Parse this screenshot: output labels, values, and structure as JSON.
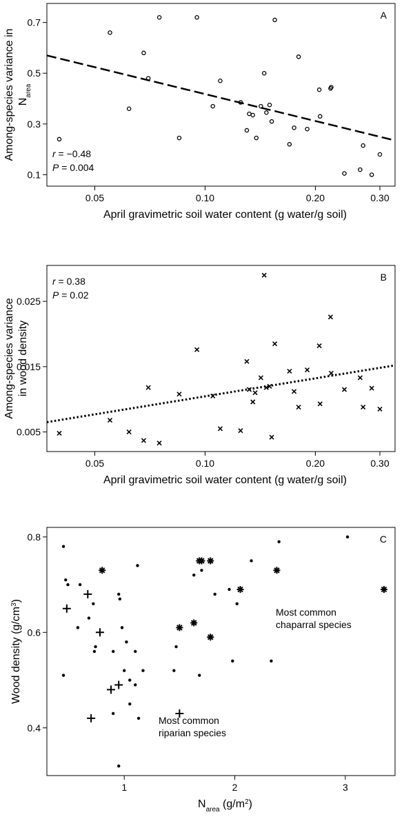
{
  "chart_data": [
    {
      "type": "scatter",
      "panel_label": "A",
      "xscale": "log",
      "xlim": [
        0.037,
        0.33
      ],
      "ylim": [
        0.055,
        0.775
      ],
      "xticks": [
        0.05,
        {
          "value": 0.1,
          "label": "0.10"
        },
        {
          "value": 0.2,
          "label": "0.20"
        },
        {
          "value": 0.3,
          "label": "0.30"
        }
      ],
      "yticks": [
        0.1,
        0.3,
        0.5,
        0.7
      ],
      "xlabel": [
        [
          {
            "text": "April gravimetric soil water content (g water/g soil)"
          }
        ]
      ],
      "ylabel": [
        [
          {
            "text": "Among-species variance in"
          }
        ],
        [
          {
            "text": "N"
          },
          {
            "sub": "area"
          }
        ]
      ],
      "stats": [
        {
          "symbol": "r",
          "text": " = −0.48"
        },
        {
          "symbol": "P",
          "text": " = 0.004"
        }
      ],
      "stats_corner": "lower left",
      "trend": {
        "x": [
          0.037,
          0.33
        ],
        "y": [
          0.57,
          0.235
        ],
        "style": "dashed"
      },
      "series": [
        {
          "marker": "circle",
          "color": "#000000",
          "x": [
            0.04,
            0.055,
            0.062,
            0.068,
            0.07,
            0.075,
            0.085,
            0.095,
            0.105,
            0.11,
            0.125,
            0.13,
            0.132,
            0.135,
            0.138,
            0.142,
            0.145,
            0.147,
            0.15,
            0.152,
            0.155,
            0.17,
            0.175,
            0.18,
            0.19,
            0.205,
            0.206,
            0.22,
            0.221,
            0.24,
            0.265,
            0.27,
            0.285,
            0.3
          ],
          "values": [
            0.24,
            0.66,
            0.36,
            0.58,
            0.48,
            0.72,
            0.245,
            0.72,
            0.37,
            0.47,
            0.385,
            0.275,
            0.34,
            0.335,
            0.245,
            0.37,
            0.5,
            0.345,
            0.375,
            0.31,
            0.71,
            0.22,
            0.285,
            0.565,
            0.28,
            0.435,
            0.33,
            0.44,
            0.445,
            0.105,
            0.12,
            0.215,
            0.1,
            0.18
          ]
        }
      ]
    },
    {
      "type": "scatter",
      "panel_label": "B",
      "xscale": "log",
      "xlim": [
        0.037,
        0.33
      ],
      "ylim": [
        0.002,
        0.0305
      ],
      "xticks": [
        0.05,
        {
          "value": 0.1,
          "label": "0.10"
        },
        {
          "value": 0.2,
          "label": "0.20"
        },
        {
          "value": 0.3,
          "label": "0.30"
        }
      ],
      "yticks": [
        0.005,
        0.015,
        0.025
      ],
      "xlabel": [
        [
          {
            "text": "April gravimetric soil water content (g water/g soil)"
          }
        ]
      ],
      "ylabel": [
        [
          {
            "text": "Among-species variance"
          }
        ],
        [
          {
            "text": "in wood density"
          }
        ]
      ],
      "stats": [
        {
          "symbol": "r",
          "text": " = 0.38"
        },
        {
          "symbol": "P",
          "text": " = 0.02"
        }
      ],
      "stats_corner": "upper left",
      "trend": {
        "x": [
          0.037,
          0.33
        ],
        "y": [
          0.0065,
          0.0152
        ],
        "style": "dotted"
      },
      "series": [
        {
          "marker": "x",
          "color": "#000000",
          "x": [
            0.04,
            0.055,
            0.062,
            0.068,
            0.07,
            0.075,
            0.085,
            0.095,
            0.105,
            0.11,
            0.125,
            0.13,
            0.132,
            0.135,
            0.137,
            0.142,
            0.145,
            0.147,
            0.15,
            0.152,
            0.155,
            0.17,
            0.175,
            0.18,
            0.19,
            0.205,
            0.206,
            0.22,
            0.221,
            0.24,
            0.265,
            0.27,
            0.285,
            0.3
          ],
          "values": [
            0.0048,
            0.0068,
            0.005,
            0.0037,
            0.0118,
            0.0033,
            0.0108,
            0.0176,
            0.0105,
            0.0055,
            0.0052,
            0.0158,
            0.0115,
            0.0096,
            0.011,
            0.0133,
            0.029,
            0.0118,
            0.012,
            0.0042,
            0.0185,
            0.0143,
            0.0112,
            0.0088,
            0.0145,
            0.0182,
            0.0093,
            0.0226,
            0.014,
            0.0115,
            0.0133,
            0.0088,
            0.0117,
            0.0085
          ]
        }
      ]
    },
    {
      "type": "scatter",
      "panel_label": "C",
      "xlim": [
        0.3,
        3.45
      ],
      "ylim": [
        0.3,
        0.82
      ],
      "xticks": [
        1,
        2,
        3
      ],
      "yticks": [
        0.4,
        0.6,
        0.8
      ],
      "xlabel": [
        [
          {
            "text": "N"
          },
          {
            "sub": "area"
          },
          {
            "text": " (g/m"
          },
          {
            "sup": "2"
          },
          {
            "text": ")"
          }
        ]
      ],
      "ylabel": [
        [
          {
            "text": "Wood density (g/cm"
          },
          {
            "sup": "3"
          },
          {
            "text": ")"
          }
        ]
      ],
      "notes": [
        [
          "Most common",
          "chaparral species"
        ],
        [
          "Most common",
          "riparian species"
        ]
      ],
      "series": [
        {
          "marker": "dot",
          "color": "#000000",
          "x": [
            0.45,
            0.47,
            0.49,
            0.45,
            0.58,
            0.6,
            0.68,
            0.73,
            0.74,
            0.72,
            0.9,
            0.9,
            0.95,
            0.95,
            0.96,
            0.98,
            1.0,
            1.02,
            1.05,
            1.05,
            1.1,
            1.1,
            1.12,
            1.13,
            1.17,
            1.45,
            1.47,
            1.63,
            1.68,
            1.7,
            1.82,
            1.95,
            1.98,
            2.02,
            2.15,
            2.33,
            2.4,
            3.02
          ],
          "values": [
            0.78,
            0.71,
            0.7,
            0.51,
            0.61,
            0.7,
            0.63,
            0.56,
            0.57,
            0.66,
            0.43,
            0.56,
            0.32,
            0.68,
            0.67,
            0.61,
            0.52,
            0.58,
            0.45,
            0.5,
            0.56,
            0.49,
            0.74,
            0.42,
            0.52,
            0.52,
            0.57,
            0.72,
            0.51,
            0.73,
            0.68,
            0.69,
            0.54,
            0.66,
            0.75,
            0.54,
            0.79,
            0.8
          ]
        },
        {
          "marker": "asterisk",
          "color": "#000000",
          "x": [
            0.8,
            1.5,
            1.63,
            1.68,
            1.7,
            1.78,
            1.78,
            2.05,
            2.38,
            3.35
          ],
          "values": [
            0.73,
            0.61,
            0.62,
            0.75,
            0.75,
            0.75,
            0.59,
            0.69,
            0.73,
            0.69
          ]
        },
        {
          "marker": "plus",
          "color": "#000000",
          "x": [
            0.48,
            0.67,
            0.78,
            0.88,
            0.95,
            0.7,
            1.5
          ],
          "values": [
            0.65,
            0.68,
            0.6,
            0.48,
            0.49,
            0.42,
            0.43
          ]
        }
      ]
    }
  ]
}
